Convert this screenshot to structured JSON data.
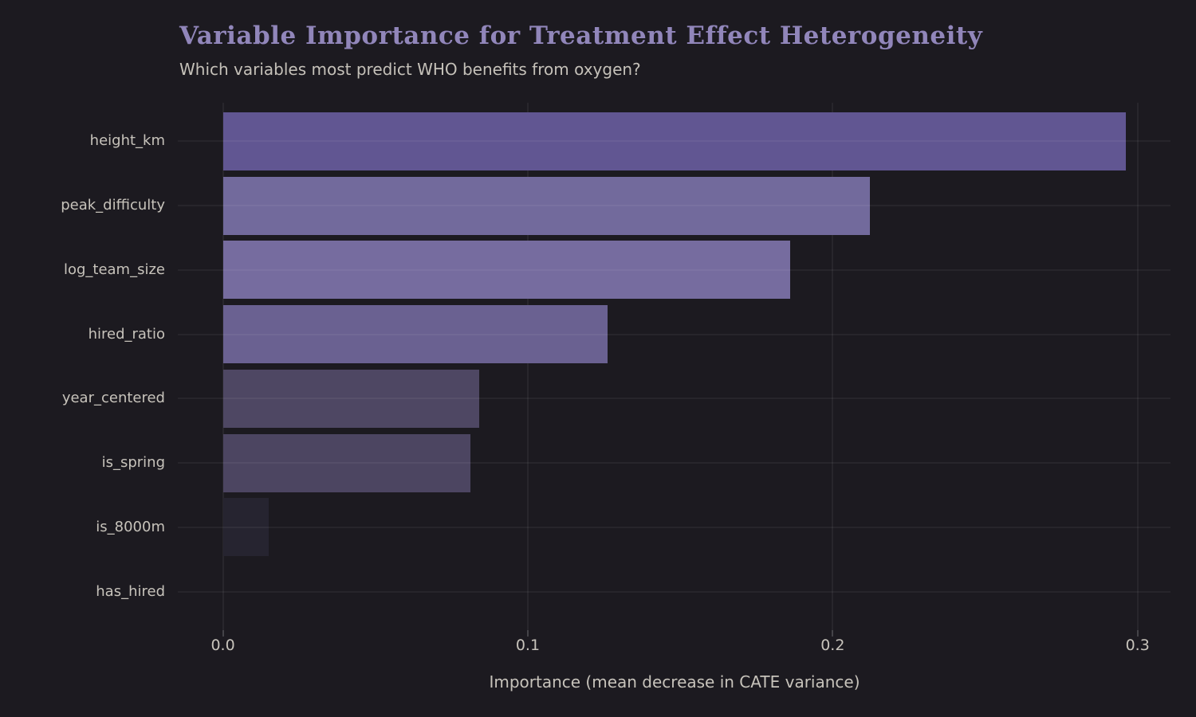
{
  "header": {
    "title": "Variable Importance for Treatment Effect Heterogeneity",
    "subtitle": "Which variables most predict WHO benefits from oxygen?"
  },
  "colors": {
    "background": "#1c1a20",
    "title_text": "#9186ba",
    "subtitle_text": "#c5c1b9",
    "axis_text": "#c7c3bb",
    "gridline": "rgba(255,255,255,0.055)"
  },
  "chart_data": {
    "type": "bar",
    "orientation": "horizontal",
    "title": "Variable Importance for Treatment Effect Heterogeneity",
    "subtitle": "Which variables most predict WHO benefits from oxygen?",
    "xlabel": "Importance (mean decrease in CATE variance)",
    "ylabel": "",
    "categories": [
      "height_km",
      "peak_difficulty",
      "log_team_size",
      "hired_ratio",
      "year_centered",
      "is_spring",
      "is_8000m",
      "has_hired"
    ],
    "values": [
      0.296,
      0.212,
      0.186,
      0.126,
      0.084,
      0.081,
      0.015,
      0.0
    ],
    "bar_colors": [
      "#615692",
      "#726a9c",
      "#766c9f",
      "#6a6191",
      "#4e4763",
      "#4c4561",
      "#262430",
      "#262430"
    ],
    "xlim": [
      -0.0148,
      0.3108
    ],
    "xticks": [
      0.0,
      0.1,
      0.2,
      0.3
    ],
    "xtick_labels": [
      "0.0",
      "0.1",
      "0.2",
      "0.3"
    ],
    "grid": true,
    "legend": false
  }
}
